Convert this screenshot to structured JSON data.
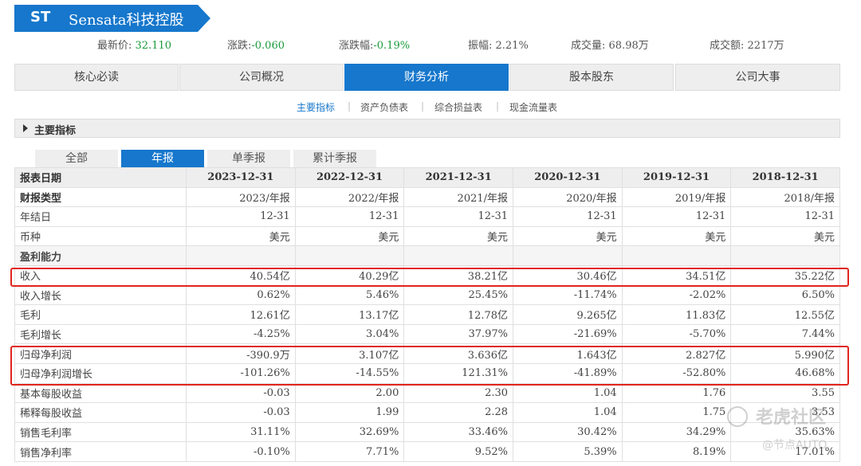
{
  "header": {
    "code": "ST",
    "name": "Sensata科技控股",
    "brand_color": "#1677cc"
  },
  "quote": {
    "price_label": "最新价:",
    "price": "32.110",
    "change_label": "涨跌:",
    "change": "-0.060",
    "change_pct_label": "涨跌幅:",
    "change_pct": "-0.19%",
    "amplitude_label": "振幅:",
    "amplitude": "2.21%",
    "volume_label": "成交量:",
    "volume": "68.98万",
    "turnover_label": "成交额:",
    "turnover": "2217万"
  },
  "tabs": [
    "核心必读",
    "公司概况",
    "财务分析",
    "股本股东",
    "公司大事"
  ],
  "subnav": [
    "主要指标",
    "资产负债表",
    "综合损益表",
    "现金流量表"
  ],
  "section_title": "主要指标",
  "period_tabs": [
    "全部",
    "年报",
    "单季报",
    "累计季报"
  ],
  "table": {
    "header": [
      "报表日期",
      "2023-12-31",
      "2022-12-31",
      "2021-12-31",
      "2020-12-31",
      "2019-12-31",
      "2018-12-31"
    ],
    "rows": [
      [
        "财报类型",
        "2023/年报",
        "2022/年报",
        "2021/年报",
        "2020/年报",
        "2019/年报",
        "2018/年报"
      ],
      [
        "年结日",
        "12-31",
        "12-31",
        "12-31",
        "12-31",
        "12-31",
        "12-31"
      ],
      [
        "币种",
        "美元",
        "美元",
        "美元",
        "美元",
        "美元",
        "美元"
      ],
      [
        "盈利能力",
        "",
        "",
        "",
        "",
        "",
        ""
      ],
      [
        "收入",
        "40.54亿",
        "40.29亿",
        "38.21亿",
        "30.46亿",
        "34.51亿",
        "35.22亿"
      ],
      [
        "收入增长",
        "0.62%",
        "5.46%",
        "25.45%",
        "-11.74%",
        "-2.02%",
        "6.50%"
      ],
      [
        "毛利",
        "12.61亿",
        "13.17亿",
        "12.78亿",
        "9.265亿",
        "11.83亿",
        "12.55亿"
      ],
      [
        "毛利增长",
        "-4.25%",
        "3.04%",
        "37.97%",
        "-21.69%",
        "-5.70%",
        "7.44%"
      ],
      [
        "归母净利润",
        "-390.9万",
        "3.107亿",
        "3.636亿",
        "1.643亿",
        "2.827亿",
        "5.990亿"
      ],
      [
        "归母净利润增长",
        "-101.26%",
        "-14.55%",
        "121.31%",
        "-41.89%",
        "-52.80%",
        "46.68%"
      ],
      [
        "基本每股收益",
        "-0.03",
        "2.00",
        "2.30",
        "1.04",
        "1.76",
        "3.55"
      ],
      [
        "稀释每股收益",
        "-0.03",
        "1.99",
        "2.28",
        "1.04",
        "1.75",
        "3.53"
      ],
      [
        "销售毛利率",
        "31.11%",
        "32.69%",
        "33.46%",
        "30.42%",
        "34.29%",
        "35.63%"
      ],
      [
        "销售净利率",
        "-0.10%",
        "7.71%",
        "9.52%",
        "5.39%",
        "8.19%",
        "17.01%"
      ]
    ]
  },
  "watermark": {
    "line1": "老虎社区",
    "line2": "@节点AUTO"
  },
  "highlight_color": "#e0251d"
}
